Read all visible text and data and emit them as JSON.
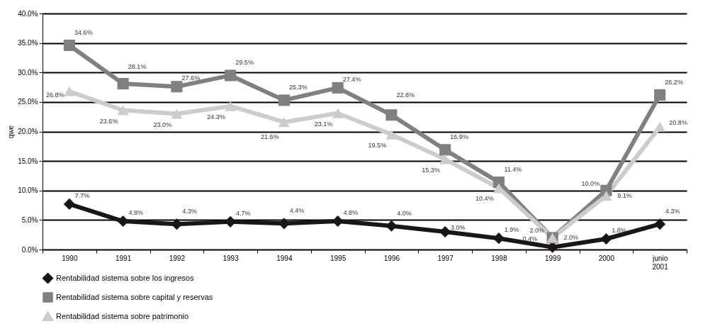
{
  "chart_data": {
    "type": "line",
    "ylabel": "qwe",
    "categories": [
      "1990",
      "1991",
      "1992",
      "1993",
      "1994",
      "1995",
      "1996",
      "1997",
      "1998",
      "1999",
      "2000",
      "junio 2001"
    ],
    "series": [
      {
        "name": "Rentabilidad sistema sobre los ingresos",
        "color": "#1a1616",
        "marker": "diamond",
        "values": [
          7.7,
          4.8,
          4.3,
          4.7,
          4.4,
          4.8,
          4.0,
          3.0,
          1.9,
          0.4,
          1.8,
          4.3
        ],
        "value_labels": [
          "7.7%",
          "4.8%",
          "4.3%",
          "4.7%",
          "4.4%",
          "4.8%",
          "4.0%",
          "3.0%",
          "1.9%",
          "0.4%",
          "1.8%",
          "4.3%"
        ]
      },
      {
        "name": "Rentabilidad sistema sobre capital y reservas",
        "color": "#808080",
        "marker": "square",
        "values": [
          34.6,
          28.1,
          27.6,
          29.5,
          25.3,
          27.4,
          22.8,
          16.9,
          11.4,
          2.0,
          10.0,
          26.2
        ],
        "value_labels": [
          "34.6%",
          "28.1%",
          "27.6%",
          "29.5%",
          "25.3%",
          "27.4%",
          "22.8%",
          "16.9%",
          "11.4%",
          "2.0%",
          "10.0%",
          "26.2%"
        ]
      },
      {
        "name": "Rentabilidad sistema sobre patrimonio",
        "color": "#cccccc",
        "marker": "triangle",
        "values": [
          26.8,
          23.6,
          23.0,
          24.3,
          21.6,
          23.1,
          19.5,
          15.3,
          10.4,
          2.0,
          9.1,
          20.8
        ],
        "value_labels": [
          "26.8%",
          "23.6%",
          "23.0%",
          "24.3%",
          "21.6%",
          "23.1%",
          "19.5%",
          "15.3%",
          "10.4%",
          "2.0%",
          "9.1%",
          "20.8%"
        ]
      }
    ],
    "ylim": [
      0,
      40
    ],
    "yticks": [
      {
        "value": 0,
        "label": "0.0%"
      },
      {
        "value": 5,
        "label": "5.0%"
      },
      {
        "value": 10,
        "label": "10.0%"
      },
      {
        "value": 15,
        "label": "15.0%"
      },
      {
        "value": 20,
        "label": "20.0%"
      },
      {
        "value": 25,
        "label": "25.0%"
      },
      {
        "value": 30,
        "label": "30.0%"
      },
      {
        "value": 35,
        "label": "35.0%"
      },
      {
        "value": 40,
        "label": "40.0%"
      }
    ],
    "grid": "y",
    "legend": "bottom"
  }
}
